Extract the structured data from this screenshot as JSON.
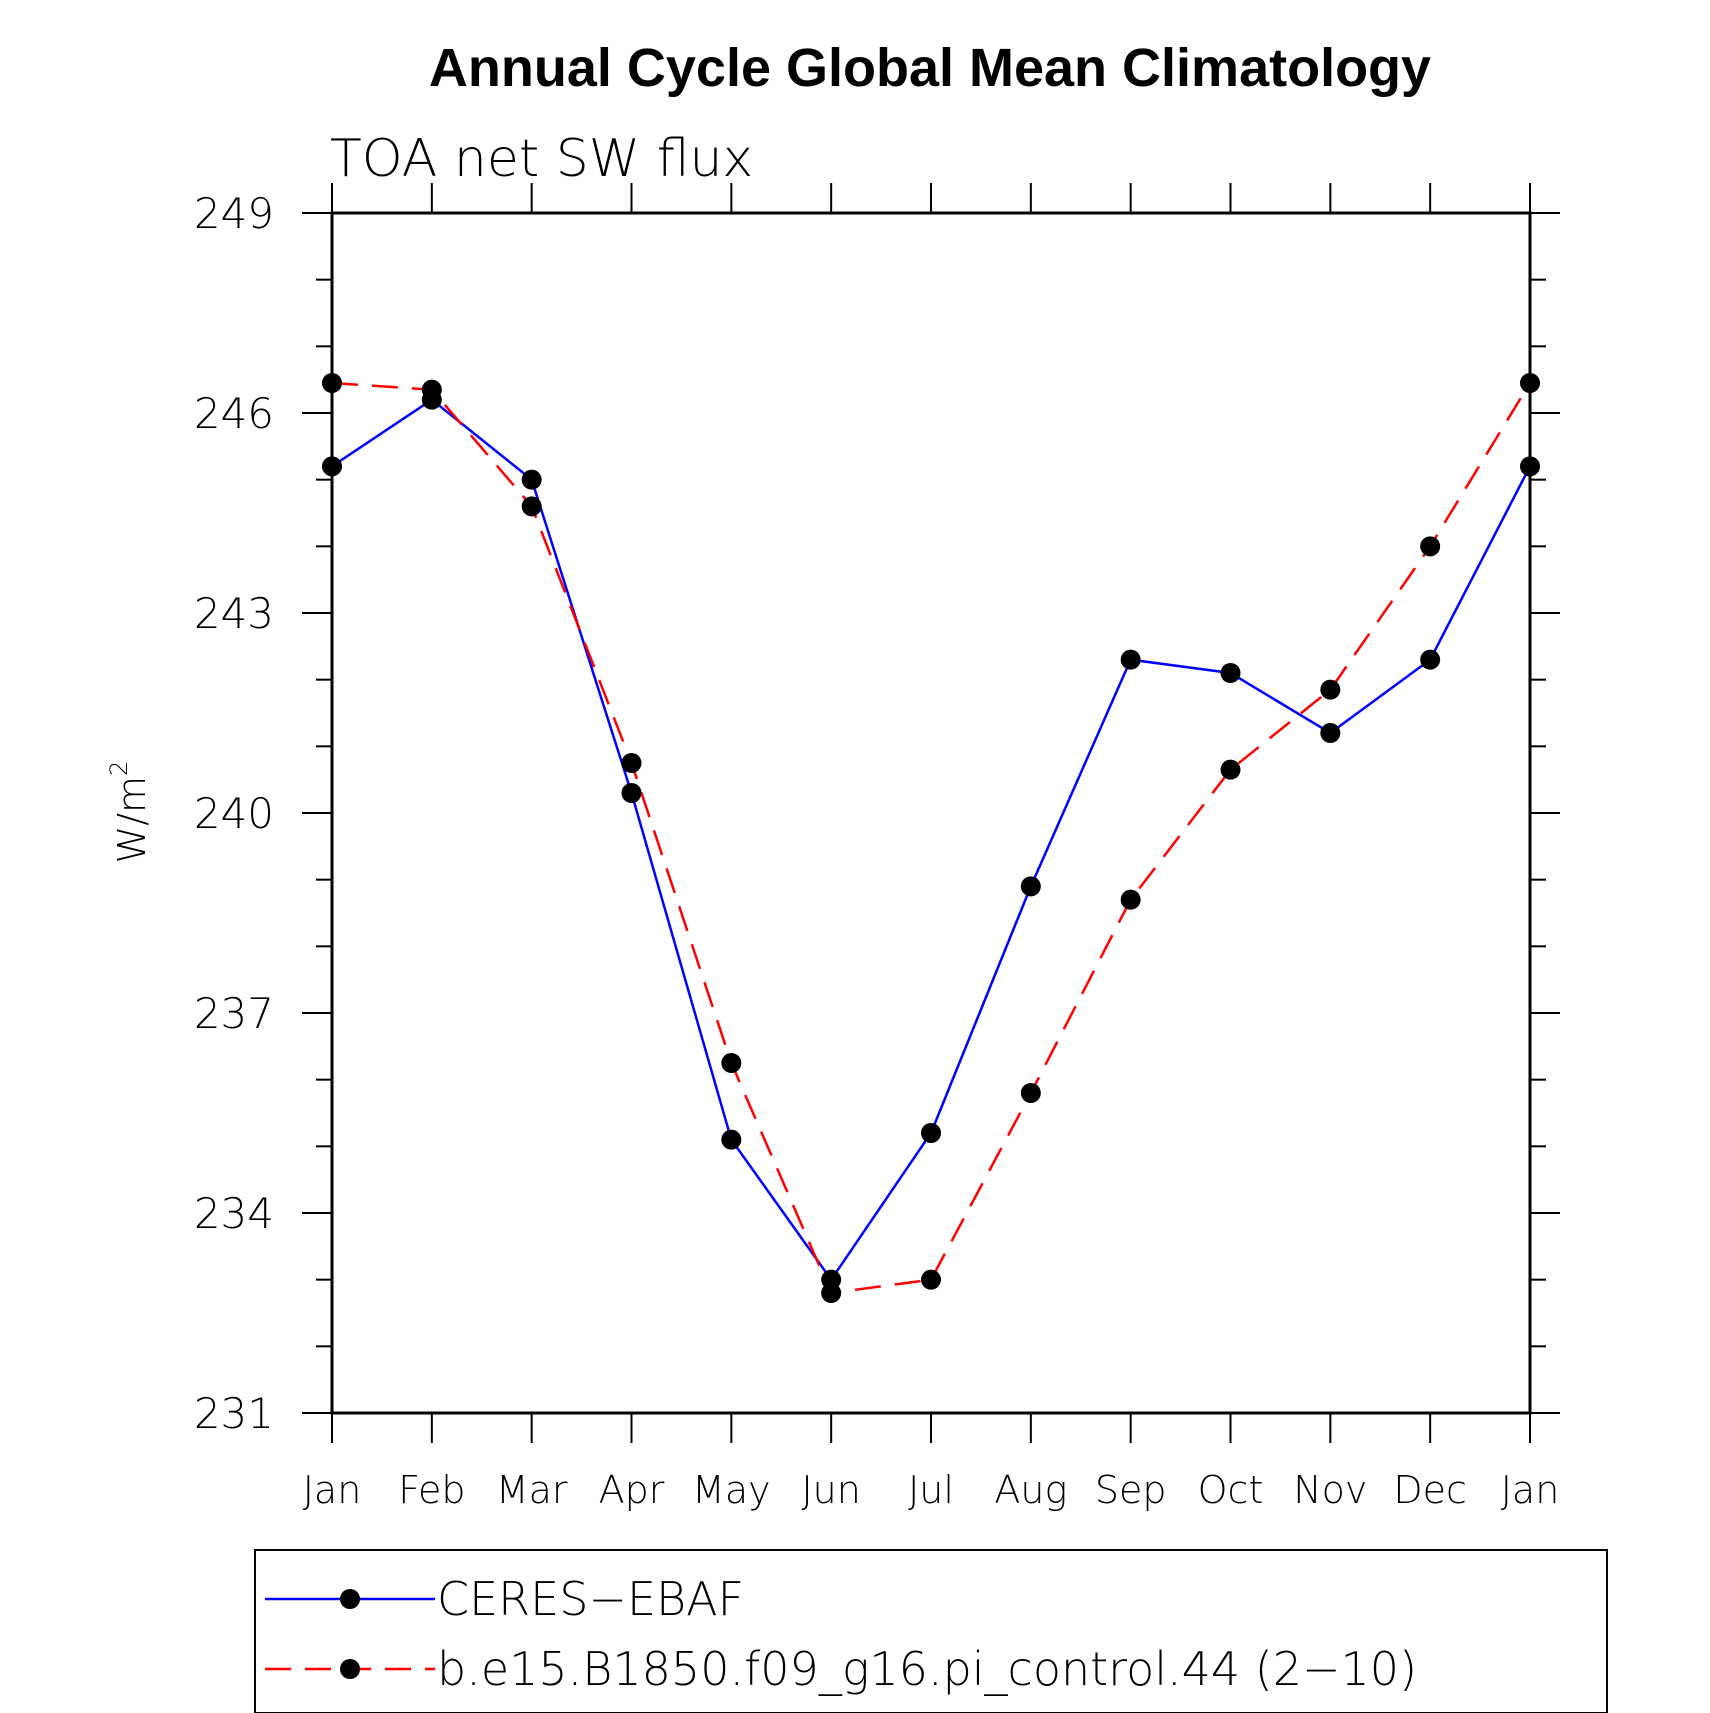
{
  "chart_data": {
    "type": "line",
    "title": "Annual Cycle Global Mean Climatology",
    "subtitle": "TOA net SW flux",
    "ylabel_base": "W/m",
    "ylabel_sup": "2",
    "xlabel": "",
    "categories": [
      "Jan",
      "Feb",
      "Mar",
      "Apr",
      "May",
      "Jun",
      "Jul",
      "Aug",
      "Sep",
      "Oct",
      "Nov",
      "Dec",
      "Jan"
    ],
    "ylim": [
      231,
      249
    ],
    "yticks": [
      231,
      234,
      237,
      240,
      243,
      246,
      249
    ],
    "grid": false,
    "legend_position": "bottom",
    "series": [
      {
        "name": "CERES−EBAF",
        "color": "#0000ff",
        "dash": "solid",
        "marker": "filled-circle",
        "values": [
          245.2,
          246.2,
          245.0,
          240.3,
          235.1,
          233.0,
          235.2,
          238.9,
          242.3,
          242.1,
          241.2,
          242.3,
          245.2
        ]
      },
      {
        "name": "b.e15.B1850.f09_g16.pi_control.44 (2−10)",
        "color": "#ff0000",
        "dash": "dashed",
        "marker": "filled-circle",
        "values": [
          246.45,
          246.35,
          244.6,
          240.75,
          236.25,
          232.8,
          233.0,
          235.8,
          238.7,
          240.65,
          241.85,
          244.0,
          246.45
        ]
      }
    ]
  }
}
